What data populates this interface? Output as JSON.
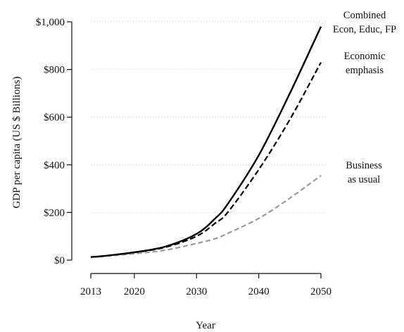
{
  "chart_data": {
    "type": "line",
    "title": "",
    "xlabel": "Year",
    "ylabel": "GDP per capita (US $ Billions)",
    "xlim": [
      2013,
      2050
    ],
    "ylim": [
      0,
      1000
    ],
    "x_ticks": [
      2013,
      2020,
      2030,
      2040,
      2050
    ],
    "x_tick_labels": [
      "2013",
      "2020",
      "2030",
      "2040",
      "2050"
    ],
    "y_ticks": [
      0,
      200,
      400,
      600,
      800,
      1000
    ],
    "y_tick_labels": [
      "$0",
      "$200",
      "$400",
      "$600",
      "$800",
      "$1,000"
    ],
    "grid": "horizontal dotted",
    "legend": "direct labels at right end of lines",
    "x": [
      2013,
      2015,
      2020,
      2025,
      2030,
      2033,
      2035,
      2040,
      2045,
      2050
    ],
    "series": [
      {
        "name": "Combined Econ, Educ, FP",
        "label_lines": [
          "Combined",
          "Econ, Educ, FP"
        ],
        "values": [
          13,
          17,
          33,
          57,
          110,
          175,
          235,
          440,
          700,
          980
        ],
        "color": "#000000",
        "style": "solid"
      },
      {
        "name": "Economic emphasis",
        "label_lines": [
          "Economic",
          "emphasis"
        ],
        "values": [
          13,
          17,
          32,
          54,
          100,
          155,
          200,
          380,
          590,
          830
        ],
        "color": "#000000",
        "style": "dashed"
      },
      {
        "name": "Business as usual",
        "label_lines": [
          "Business",
          "as usual"
        ],
        "values": [
          13,
          16,
          27,
          42,
          70,
          90,
          112,
          175,
          260,
          355
        ],
        "color": "#999999",
        "style": "dashed"
      }
    ]
  }
}
